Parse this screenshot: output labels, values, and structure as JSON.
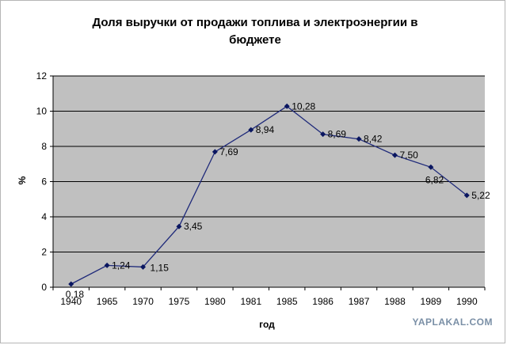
{
  "chart_data": {
    "type": "line",
    "title_lines": [
      "Доля выручки от продажи топлива и электроэнергии в",
      "бюджете"
    ],
    "xlabel": "год",
    "ylabel": "%",
    "categories": [
      "1940",
      "1965",
      "1970",
      "1975",
      "1980",
      "1981",
      "1985",
      "1986",
      "1987",
      "1988",
      "1989",
      "1990"
    ],
    "values": [
      0.18,
      1.24,
      1.15,
      3.45,
      7.69,
      8.94,
      10.28,
      8.69,
      8.42,
      7.5,
      6.82,
      5.22
    ],
    "data_labels": [
      "0,18",
      "1,24",
      "1,15",
      "3,45",
      "7,69",
      "8,94",
      "10,28",
      "8,69",
      "8,42",
      "7,50",
      "6,82",
      "5,22"
    ],
    "ylim": [
      0,
      12
    ],
    "yticks": [
      0,
      2,
      4,
      6,
      8,
      10,
      12
    ],
    "grid": "horizontal",
    "legend": "none",
    "colors": {
      "plot_bg": "#c0c0c0",
      "line": "#1f2a7a",
      "marker": "#0a1660",
      "grid": "#000000"
    }
  },
  "watermark": "YAPLAKAL.COM"
}
